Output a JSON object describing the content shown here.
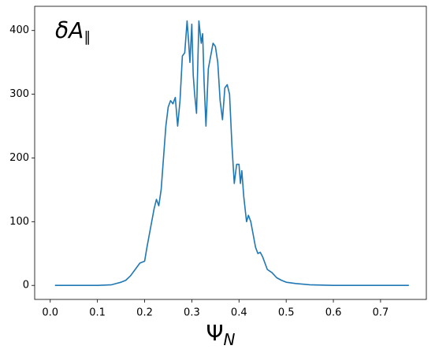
{
  "chart_data": {
    "type": "line",
    "annotation": {
      "text": "δA",
      "sub": "∥"
    },
    "xlabel": {
      "text": "Ψ",
      "sub": "N"
    },
    "x": [
      0.01,
      0.05,
      0.1,
      0.13,
      0.14,
      0.15,
      0.16,
      0.17,
      0.18,
      0.19,
      0.2,
      0.205,
      0.21,
      0.215,
      0.22,
      0.225,
      0.23,
      0.235,
      0.24,
      0.245,
      0.25,
      0.255,
      0.26,
      0.265,
      0.27,
      0.275,
      0.28,
      0.285,
      0.29,
      0.293,
      0.296,
      0.3,
      0.303,
      0.306,
      0.31,
      0.315,
      0.32,
      0.323,
      0.326,
      0.33,
      0.335,
      0.34,
      0.345,
      0.35,
      0.355,
      0.36,
      0.365,
      0.37,
      0.375,
      0.38,
      0.385,
      0.39,
      0.395,
      0.4,
      0.403,
      0.406,
      0.41,
      0.413,
      0.416,
      0.42,
      0.425,
      0.43,
      0.435,
      0.44,
      0.445,
      0.45,
      0.455,
      0.46,
      0.47,
      0.48,
      0.49,
      0.5,
      0.52,
      0.55,
      0.6,
      0.7,
      0.76
    ],
    "values": [
      0,
      0,
      0,
      1,
      3,
      5,
      8,
      15,
      25,
      35,
      38,
      60,
      80,
      100,
      120,
      135,
      125,
      150,
      200,
      250,
      280,
      290,
      285,
      295,
      250,
      290,
      360,
      365,
      415,
      385,
      350,
      410,
      330,
      300,
      270,
      415,
      380,
      395,
      320,
      250,
      340,
      360,
      380,
      375,
      350,
      290,
      260,
      310,
      315,
      300,
      220,
      160,
      190,
      190,
      160,
      180,
      140,
      120,
      100,
      110,
      100,
      80,
      60,
      50,
      52,
      45,
      35,
      25,
      20,
      12,
      8,
      5,
      3,
      1,
      0,
      0,
      0
    ],
    "color": "#1f77b4",
    "xlim": [
      -0.033,
      0.797
    ],
    "ylim": [
      -22,
      438
    ],
    "xticks": [
      {
        "value": 0,
        "label": "0.0"
      },
      0.1,
      0.2,
      0.3,
      0.4,
      0.5,
      0.6,
      0.7
    ],
    "yticks": [
      0,
      100,
      200,
      300,
      400
    ],
    "grid": false
  }
}
